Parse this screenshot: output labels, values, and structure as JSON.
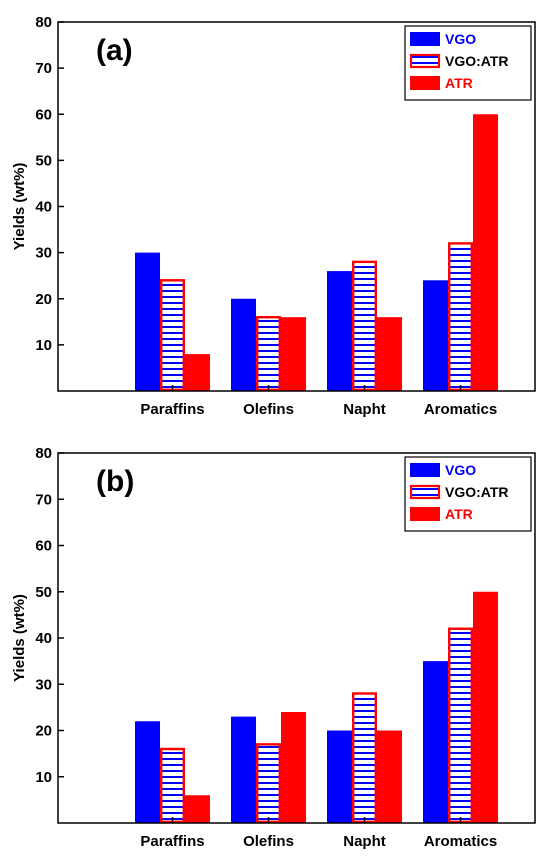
{
  "chart_data": [
    {
      "type": "bar",
      "panel_label": "(a)",
      "categories": [
        "Paraffins",
        "Olefins",
        "Napht",
        "Aromatics"
      ],
      "series": [
        {
          "name": "VGO",
          "values": [
            30,
            20,
            26,
            24
          ],
          "color": "#0000ff",
          "style": "solid"
        },
        {
          "name": "VGO:ATR",
          "values": [
            24,
            16,
            28,
            32
          ],
          "color": "#ff0000",
          "style": "hatched-horizontal-blue"
        },
        {
          "name": "ATR",
          "values": [
            8,
            16,
            16,
            60
          ],
          "color": "#ff0000",
          "style": "solid"
        }
      ],
      "ylabel": "Yields (wt%)",
      "xlabel": "",
      "ylim": [
        0,
        80
      ],
      "yticks": [
        10,
        20,
        30,
        40,
        50,
        60,
        70,
        80
      ],
      "legend_position": "top-right",
      "grid": false
    },
    {
      "type": "bar",
      "panel_label": "(b)",
      "categories": [
        "Paraffins",
        "Olefins",
        "Napht",
        "Aromatics"
      ],
      "series": [
        {
          "name": "VGO",
          "values": [
            22,
            23,
            20,
            35
          ],
          "color": "#0000ff",
          "style": "solid"
        },
        {
          "name": "VGO:ATR",
          "values": [
            16,
            17,
            28,
            42
          ],
          "color": "#ff0000",
          "style": "hatched-horizontal-blue"
        },
        {
          "name": "ATR",
          "values": [
            6,
            24,
            20,
            50
          ],
          "color": "#ff0000",
          "style": "solid"
        }
      ],
      "ylabel": "Yields (wt%)",
      "xlabel": "",
      "ylim": [
        0,
        80
      ],
      "yticks": [
        10,
        20,
        30,
        40,
        50,
        60,
        70,
        80
      ],
      "legend_position": "top-right",
      "grid": false
    }
  ]
}
